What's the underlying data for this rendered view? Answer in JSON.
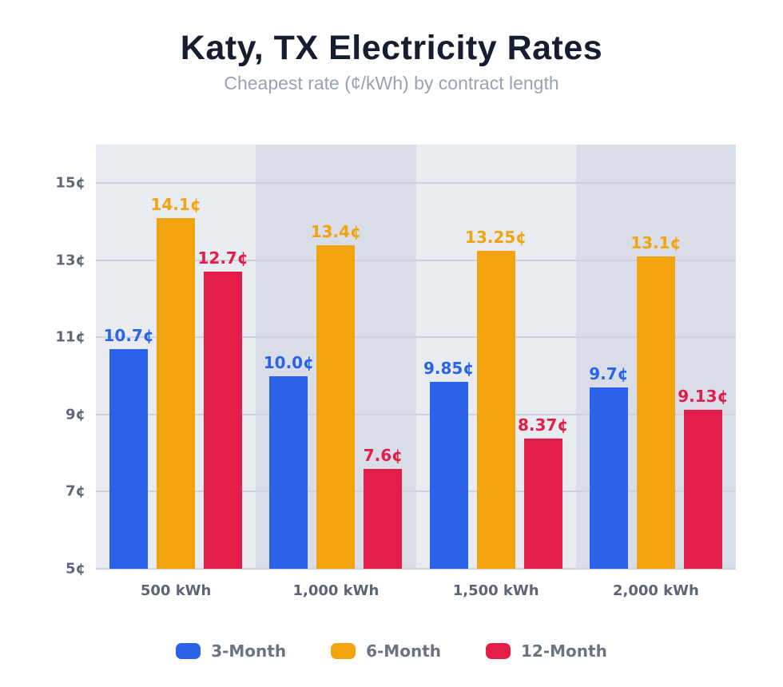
{
  "page": {
    "title": "Katy, TX Electricity Rates",
    "subtitle": "Cheapest rate (¢/kWh) by contract length"
  },
  "chart_data": {
    "type": "bar",
    "title": "Katy, TX Electricity Rates",
    "subtitle": "Cheapest rate (¢/kWh) by contract length",
    "categories": [
      "500 kWh",
      "1,000 kWh",
      "1,500 kWh",
      "2,000 kWh"
    ],
    "series": [
      {
        "name": "3-Month",
        "color": "#2a63e9",
        "values": [
          10.7,
          10.0,
          9.85,
          9.7
        ],
        "value_labels": [
          "10.7¢",
          "10.0¢",
          "9.85¢",
          "9.7¢"
        ]
      },
      {
        "name": "6-Month",
        "color": "#f2a30e",
        "values": [
          14.1,
          13.4,
          13.25,
          13.1
        ],
        "value_labels": [
          "14.1¢",
          "13.4¢",
          "13.25¢",
          "13.1¢"
        ]
      },
      {
        "name": "12-Month",
        "color": "#e11d48",
        "values": [
          12.7,
          7.6,
          8.37,
          9.13
        ],
        "value_labels": [
          "12.7¢",
          "7.6¢",
          "8.37¢",
          "9.13¢"
        ]
      }
    ],
    "yticks": [
      {
        "value": 5,
        "label": "5¢"
      },
      {
        "value": 7,
        "label": "7¢"
      },
      {
        "value": 9,
        "label": "9¢"
      },
      {
        "value": 11,
        "label": "11¢"
      },
      {
        "value": 13,
        "label": "13¢"
      },
      {
        "value": 15,
        "label": "15¢"
      }
    ],
    "ylim": [
      5,
      16
    ],
    "grid": true,
    "legend_position": "bottom",
    "band_colors": [
      "#e8ebf0",
      "#d8dde8"
    ],
    "gridline_color": "#ccd3de"
  }
}
